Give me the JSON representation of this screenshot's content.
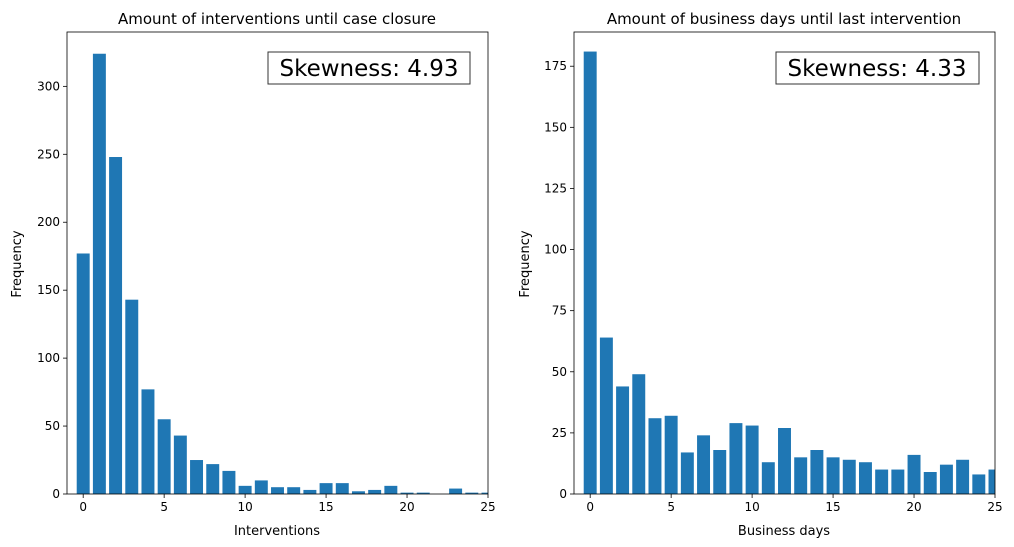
{
  "chart_data": [
    {
      "type": "bar",
      "title": "Amount of interventions until case closure",
      "xlabel": "Interventions",
      "ylabel": "Frequency",
      "xlim": [
        -1,
        25
      ],
      "ylim": [
        0,
        340
      ],
      "xticks": [
        0,
        5,
        10,
        15,
        20,
        25
      ],
      "yticks": [
        0,
        50,
        100,
        150,
        200,
        250,
        300
      ],
      "bar_color": "#1f77b4",
      "grid": false,
      "annotation": {
        "text": "Skewness: 4.93",
        "placement": "top-right"
      },
      "categories": [
        0,
        1,
        2,
        3,
        4,
        5,
        6,
        7,
        8,
        9,
        10,
        11,
        12,
        13,
        14,
        15,
        16,
        17,
        18,
        19,
        20,
        21,
        22,
        23,
        24,
        25
      ],
      "values": [
        177,
        324,
        248,
        143,
        77,
        55,
        43,
        25,
        22,
        17,
        6,
        10,
        5,
        5,
        3,
        8,
        8,
        2,
        3,
        6,
        1,
        1,
        0,
        4,
        1,
        1
      ]
    },
    {
      "type": "bar",
      "title": "Amount of business days until last intervention",
      "xlabel": "Business days",
      "ylabel": "Frequency",
      "xlim": [
        -1,
        25
      ],
      "ylim": [
        0,
        189
      ],
      "xticks": [
        0,
        5,
        10,
        15,
        20,
        25
      ],
      "yticks": [
        0,
        25,
        50,
        75,
        100,
        125,
        150,
        175
      ],
      "bar_color": "#1f77b4",
      "grid": false,
      "annotation": {
        "text": "Skewness: 4.33",
        "placement": "top-right"
      },
      "categories": [
        0,
        1,
        2,
        3,
        4,
        5,
        6,
        7,
        8,
        9,
        10,
        11,
        12,
        13,
        14,
        15,
        16,
        17,
        18,
        19,
        20,
        21,
        22,
        23,
        24,
        25
      ],
      "values": [
        181,
        64,
        44,
        49,
        31,
        32,
        17,
        24,
        18,
        29,
        28,
        13,
        27,
        15,
        18,
        15,
        14,
        13,
        10,
        10,
        16,
        9,
        12,
        14,
        8,
        10
      ]
    }
  ]
}
